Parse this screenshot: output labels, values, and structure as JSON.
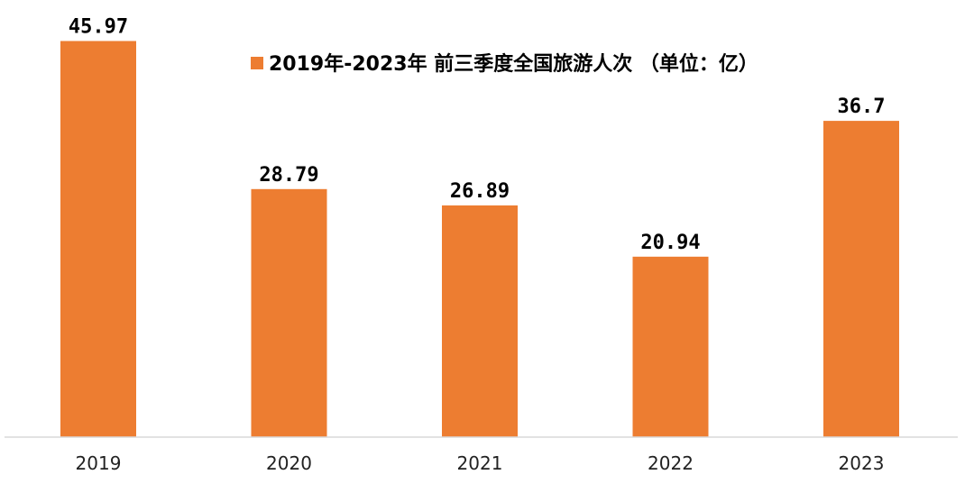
{
  "chart_data": {
    "type": "bar",
    "categories": [
      "2019",
      "2020",
      "2021",
      "2022",
      "2023"
    ],
    "series": [
      {
        "name": "2019年-2023年 前三季度全国旅游人次 （单位：亿）",
        "values": [
          45.97,
          28.79,
          26.89,
          20.94,
          36.7
        ],
        "labels": [
          "45.97",
          "28.79",
          "26.89",
          "20.94",
          "36.7"
        ],
        "color": "#ED7D31"
      }
    ],
    "ylim": [
      0,
      50
    ],
    "grid": false,
    "legend_position": "top"
  }
}
